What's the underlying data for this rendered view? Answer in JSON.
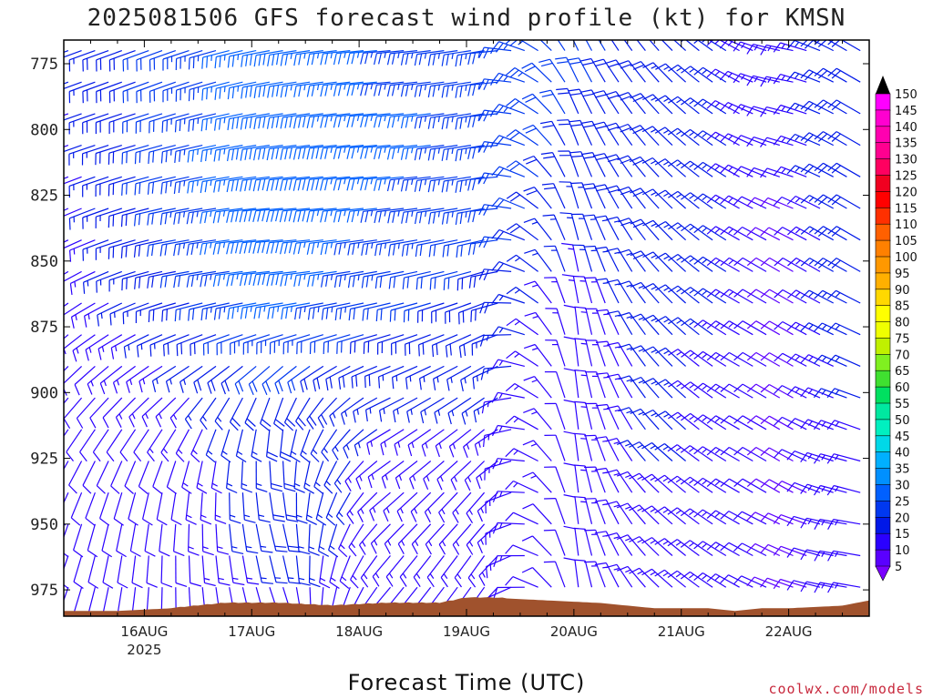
{
  "chart_data": {
    "type": "wind_barbs",
    "title": "2025081506 GFS forecast wind profile (kt) for KMSN",
    "xlabel": "Forecast Time (UTC)",
    "credit": "coolwx.com/models",
    "x_ticks": [
      {
        "label": "16AUG",
        "sub": "2025",
        "hour": 18
      },
      {
        "label": "17AUG",
        "sub": "",
        "hour": 42
      },
      {
        "label": "18AUG",
        "sub": "",
        "hour": 66
      },
      {
        "label": "19AUG",
        "sub": "",
        "hour": 90
      },
      {
        "label": "20AUG",
        "sub": "",
        "hour": 114
      },
      {
        "label": "21AUG",
        "sub": "",
        "hour": 138
      },
      {
        "label": "22AUG",
        "sub": "",
        "hour": 162
      }
    ],
    "xlim_hours": [
      0,
      180
    ],
    "y_ticks": [
      775,
      800,
      825,
      850,
      875,
      900,
      925,
      950,
      975
    ],
    "ylim_hpa": [
      985,
      766
    ],
    "colorbar": {
      "min": 5,
      "max": 150,
      "step": 5,
      "labels": [
        150,
        145,
        140,
        135,
        130,
        125,
        120,
        115,
        110,
        105,
        100,
        95,
        90,
        85,
        80,
        75,
        70,
        65,
        60,
        55,
        50,
        45,
        40,
        35,
        30,
        25,
        20,
        15,
        10,
        5
      ]
    },
    "profile_levels": [
      775,
      787.5,
      800,
      812.5,
      825,
      837.5,
      850,
      862.5,
      875,
      887.5,
      900,
      912.5,
      925,
      937.5,
      950,
      962.5,
      975
    ],
    "profile_times": [
      0,
      24,
      48,
      72,
      96,
      114,
      132,
      150,
      162,
      174
    ],
    "wind_direction_deg": [
      [
        250,
        250,
        260,
        265,
        260,
        335,
        320,
        300,
        280,
        300
      ],
      [
        250,
        250,
        260,
        265,
        260,
        335,
        320,
        300,
        280,
        300
      ],
      [
        250,
        255,
        262,
        265,
        260,
        340,
        318,
        300,
        285,
        300
      ],
      [
        250,
        255,
        262,
        265,
        260,
        340,
        318,
        300,
        285,
        300
      ],
      [
        245,
        258,
        265,
        265,
        260,
        345,
        318,
        300,
        290,
        300
      ],
      [
        245,
        258,
        265,
        262,
        258,
        345,
        320,
        300,
        295,
        300
      ],
      [
        240,
        260,
        265,
        260,
        255,
        350,
        320,
        300,
        300,
        300
      ],
      [
        235,
        255,
        262,
        258,
        250,
        350,
        320,
        300,
        300,
        298
      ],
      [
        230,
        250,
        258,
        255,
        245,
        355,
        320,
        300,
        300,
        295
      ],
      [
        225,
        240,
        235,
        250,
        240,
        355,
        320,
        300,
        300,
        295
      ],
      [
        220,
        230,
        200,
        245,
        235,
        355,
        320,
        300,
        300,
        290
      ],
      [
        215,
        215,
        185,
        240,
        230,
        355,
        320,
        300,
        300,
        290
      ],
      [
        210,
        200,
        175,
        235,
        225,
        355,
        315,
        300,
        300,
        285
      ],
      [
        205,
        190,
        170,
        230,
        220,
        355,
        315,
        300,
        300,
        285
      ],
      [
        200,
        185,
        165,
        225,
        220,
        355,
        315,
        300,
        295,
        280
      ],
      [
        200,
        180,
        165,
        220,
        215,
        355,
        315,
        300,
        295,
        280
      ],
      [
        200,
        180,
        160,
        220,
        215,
        355,
        315,
        300,
        290,
        280
      ]
    ],
    "wind_speed_kt": [
      [
        15,
        22,
        28,
        25,
        25,
        22,
        18,
        15,
        12,
        20
      ],
      [
        15,
        22,
        28,
        25,
        25,
        20,
        18,
        15,
        12,
        20
      ],
      [
        14,
        22,
        30,
        26,
        24,
        20,
        18,
        15,
        10,
        20
      ],
      [
        14,
        22,
        30,
        26,
        24,
        18,
        18,
        15,
        10,
        20
      ],
      [
        13,
        22,
        30,
        25,
        23,
        18,
        18,
        15,
        9,
        18
      ],
      [
        13,
        20,
        30,
        24,
        22,
        16,
        18,
        15,
        9,
        18
      ],
      [
        12,
        20,
        30,
        23,
        20,
        15,
        18,
        15,
        8,
        18
      ],
      [
        12,
        18,
        28,
        22,
        19,
        14,
        17,
        15,
        8,
        17
      ],
      [
        12,
        17,
        25,
        20,
        18,
        12,
        17,
        15,
        8,
        17
      ],
      [
        11,
        15,
        22,
        18,
        17,
        12,
        16,
        14,
        8,
        16
      ],
      [
        11,
        14,
        20,
        16,
        16,
        12,
        16,
        14,
        8,
        16
      ],
      [
        10,
        13,
        18,
        15,
        15,
        12,
        16,
        14,
        8,
        15
      ],
      [
        10,
        12,
        18,
        14,
        14,
        12,
        16,
        14,
        8,
        15
      ],
      [
        10,
        12,
        18,
        14,
        14,
        12,
        15,
        13,
        8,
        14
      ],
      [
        10,
        12,
        18,
        13,
        13,
        12,
        15,
        13,
        8,
        14
      ],
      [
        10,
        11,
        16,
        13,
        13,
        12,
        14,
        13,
        8,
        13
      ],
      [
        10,
        11,
        15,
        12,
        12,
        12,
        14,
        13,
        8,
        13
      ]
    ],
    "terrain_surface_hpa_by_hour": [
      [
        0,
        983
      ],
      [
        12,
        983
      ],
      [
        24,
        982
      ],
      [
        30,
        981
      ],
      [
        36,
        980
      ],
      [
        48,
        980
      ],
      [
        60,
        981
      ],
      [
        72,
        980
      ],
      [
        84,
        980
      ],
      [
        90,
        978
      ],
      [
        96,
        978
      ],
      [
        108,
        979
      ],
      [
        120,
        980
      ],
      [
        126,
        981
      ],
      [
        132,
        982
      ],
      [
        144,
        982
      ],
      [
        150,
        983
      ],
      [
        156,
        982
      ],
      [
        162,
        982
      ],
      [
        174,
        981
      ],
      [
        180,
        979
      ]
    ]
  }
}
